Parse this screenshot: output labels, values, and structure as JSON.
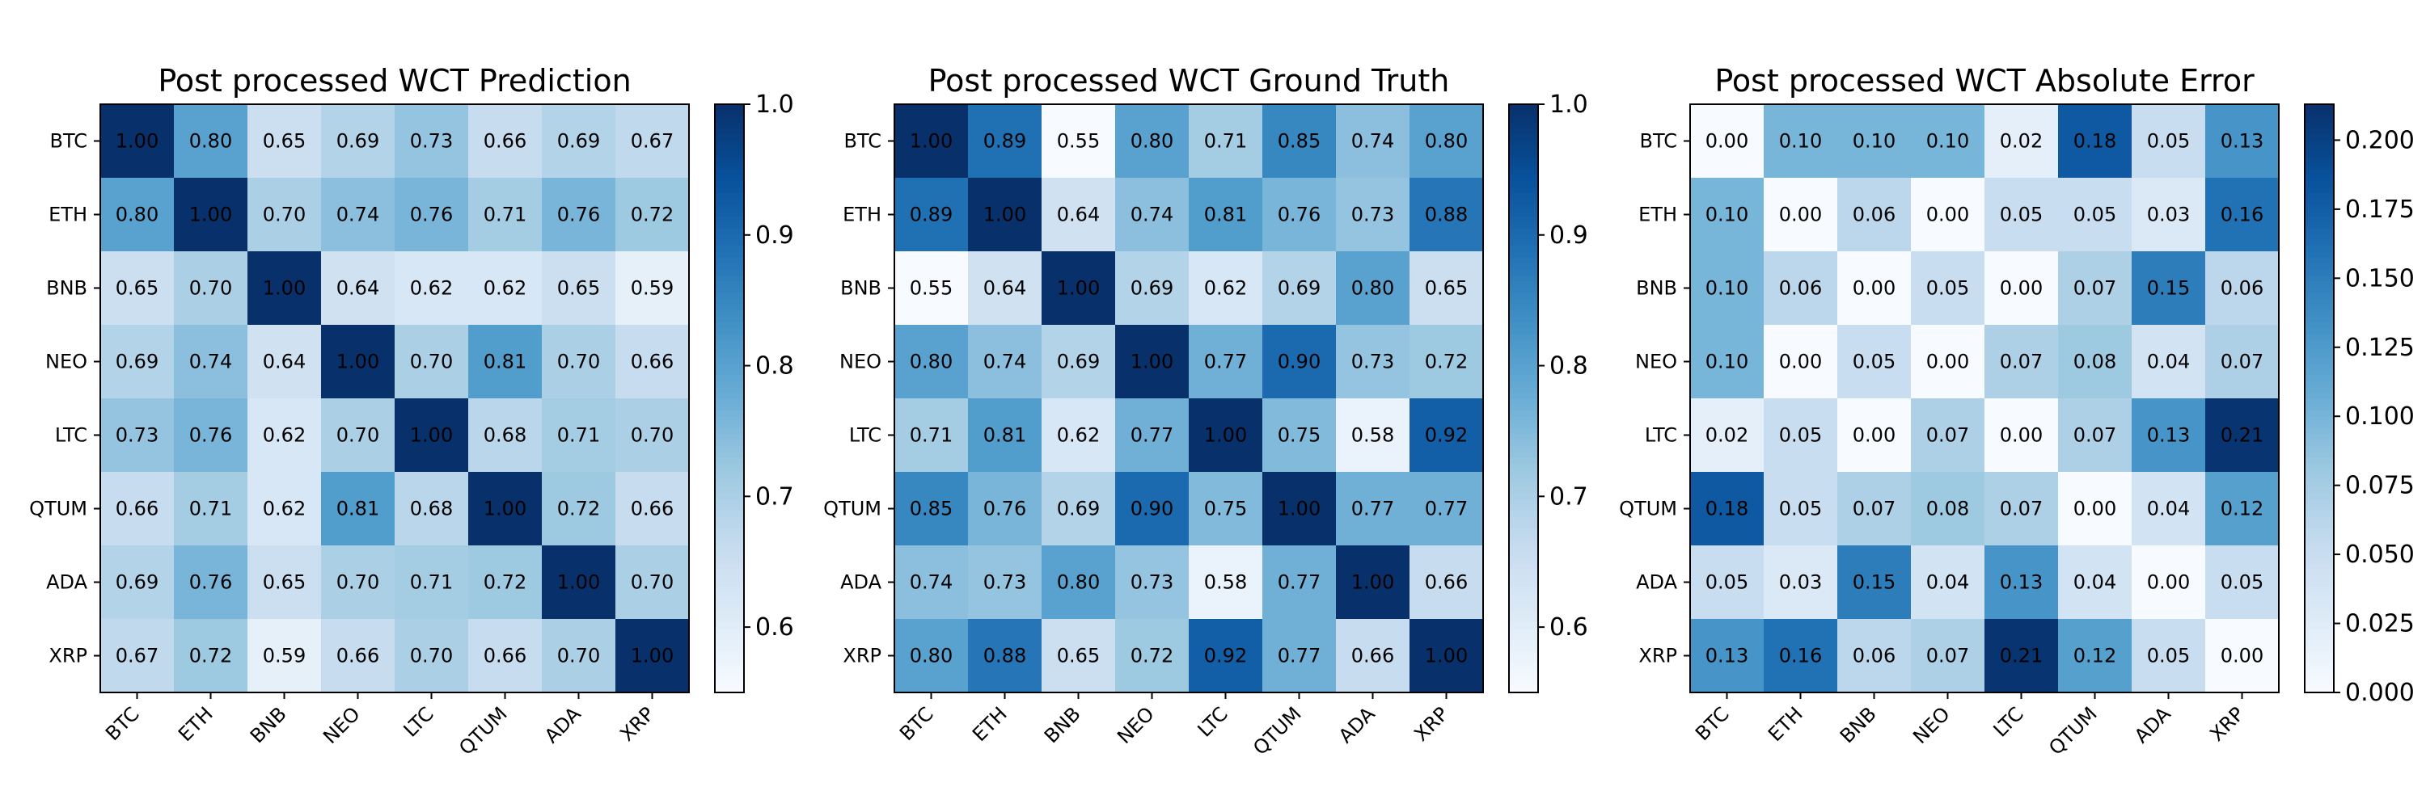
{
  "chart_data": [
    {
      "type": "heatmap",
      "title": "Post processed WCT Prediction",
      "categories": [
        "BTC",
        "ETH",
        "BNB",
        "NEO",
        "LTC",
        "QTUM",
        "ADA",
        "XRP"
      ],
      "values": [
        [
          1.0,
          0.8,
          0.65,
          0.69,
          0.73,
          0.66,
          0.69,
          0.67
        ],
        [
          0.8,
          1.0,
          0.7,
          0.74,
          0.76,
          0.71,
          0.76,
          0.72
        ],
        [
          0.65,
          0.7,
          1.0,
          0.64,
          0.62,
          0.62,
          0.65,
          0.59
        ],
        [
          0.69,
          0.74,
          0.64,
          1.0,
          0.7,
          0.81,
          0.7,
          0.66
        ],
        [
          0.73,
          0.76,
          0.62,
          0.7,
          1.0,
          0.68,
          0.71,
          0.7
        ],
        [
          0.66,
          0.71,
          0.62,
          0.81,
          0.68,
          1.0,
          0.72,
          0.66
        ],
        [
          0.69,
          0.76,
          0.65,
          0.7,
          0.71,
          0.72,
          1.0,
          0.7
        ],
        [
          0.67,
          0.72,
          0.59,
          0.66,
          0.7,
          0.66,
          0.7,
          1.0
        ]
      ],
      "colorbar": {
        "range": [
          0.55,
          1.0
        ],
        "ticks": [
          0.6,
          0.7,
          0.8,
          0.9,
          1.0
        ],
        "tick_labels": [
          "0.6",
          "0.7",
          "0.8",
          "0.9",
          "1.0"
        ]
      },
      "colormap": "Blues"
    },
    {
      "type": "heatmap",
      "title": "Post processed WCT Ground Truth",
      "categories": [
        "BTC",
        "ETH",
        "BNB",
        "NEO",
        "LTC",
        "QTUM",
        "ADA",
        "XRP"
      ],
      "values": [
        [
          1.0,
          0.89,
          0.55,
          0.8,
          0.71,
          0.85,
          0.74,
          0.8
        ],
        [
          0.89,
          1.0,
          0.64,
          0.74,
          0.81,
          0.76,
          0.73,
          0.88
        ],
        [
          0.55,
          0.64,
          1.0,
          0.69,
          0.62,
          0.69,
          0.8,
          0.65
        ],
        [
          0.8,
          0.74,
          0.69,
          1.0,
          0.77,
          0.9,
          0.73,
          0.72
        ],
        [
          0.71,
          0.81,
          0.62,
          0.77,
          1.0,
          0.75,
          0.58,
          0.92
        ],
        [
          0.85,
          0.76,
          0.69,
          0.9,
          0.75,
          1.0,
          0.77,
          0.77
        ],
        [
          0.74,
          0.73,
          0.8,
          0.73,
          0.58,
          0.77,
          1.0,
          0.66
        ],
        [
          0.8,
          0.88,
          0.65,
          0.72,
          0.92,
          0.77,
          0.66,
          1.0
        ]
      ],
      "colorbar": {
        "range": [
          0.55,
          1.0
        ],
        "ticks": [
          0.6,
          0.7,
          0.8,
          0.9,
          1.0
        ],
        "tick_labels": [
          "0.6",
          "0.7",
          "0.8",
          "0.9",
          "1.0"
        ]
      },
      "colormap": "Blues"
    },
    {
      "type": "heatmap",
      "title": "Post processed WCT Absolute Error",
      "categories": [
        "BTC",
        "ETH",
        "BNB",
        "NEO",
        "LTC",
        "QTUM",
        "ADA",
        "XRP"
      ],
      "values": [
        [
          0.0,
          0.1,
          0.1,
          0.1,
          0.02,
          0.18,
          0.05,
          0.13
        ],
        [
          0.1,
          0.0,
          0.06,
          0.0,
          0.05,
          0.05,
          0.03,
          0.16
        ],
        [
          0.1,
          0.06,
          0.0,
          0.05,
          0.0,
          0.07,
          0.15,
          0.06
        ],
        [
          0.1,
          0.0,
          0.05,
          0.0,
          0.07,
          0.08,
          0.04,
          0.07
        ],
        [
          0.02,
          0.05,
          0.0,
          0.07,
          0.0,
          0.07,
          0.13,
          0.21
        ],
        [
          0.18,
          0.05,
          0.07,
          0.08,
          0.07,
          0.0,
          0.04,
          0.12
        ],
        [
          0.05,
          0.03,
          0.15,
          0.04,
          0.13,
          0.04,
          0.0,
          0.05
        ],
        [
          0.13,
          0.16,
          0.06,
          0.07,
          0.21,
          0.12,
          0.05,
          0.0
        ]
      ],
      "colorbar": {
        "range": [
          0.0,
          0.213
        ],
        "ticks": [
          0.0,
          0.025,
          0.05,
          0.075,
          0.1,
          0.125,
          0.15,
          0.175,
          0.2
        ],
        "tick_labels": [
          "0.000",
          "0.025",
          "0.050",
          "0.075",
          "0.100",
          "0.125",
          "0.150",
          "0.175",
          "0.200"
        ]
      },
      "colormap": "Blues"
    }
  ]
}
